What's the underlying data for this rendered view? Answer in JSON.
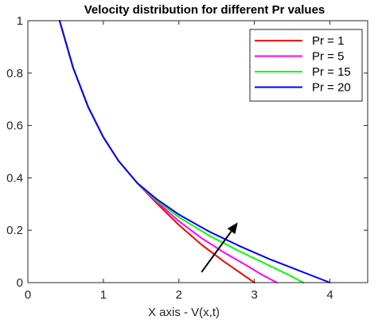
{
  "chart_data": {
    "type": "line",
    "title": "Velocity distribution for different Pr values",
    "xlabel": "X axis - V(x,t)",
    "ylabel": "",
    "xlim": [
      0,
      4.5
    ],
    "ylim": [
      0,
      1
    ],
    "xticks": [
      "0",
      "1",
      "2",
      "3",
      "4"
    ],
    "yticks": [
      "0",
      "0.2",
      "0.4",
      "0.6",
      "0.8",
      "1"
    ],
    "grid": false,
    "legend_position": "top-right",
    "series": [
      {
        "name": "Pr = 1",
        "color": "#ff0000",
        "x": [
          0.42,
          0.6,
          0.8,
          1.0,
          1.2,
          1.45,
          1.7,
          2.0,
          2.3,
          2.6,
          2.85,
          3.0
        ],
        "y": [
          1.0,
          0.82,
          0.67,
          0.555,
          0.465,
          0.38,
          0.305,
          0.22,
          0.145,
          0.08,
          0.03,
          0.0
        ]
      },
      {
        "name": "Pr = 5",
        "color": "#ff00ff",
        "x": [
          0.42,
          0.6,
          0.8,
          1.0,
          1.2,
          1.45,
          1.7,
          2.0,
          2.3,
          2.6,
          2.9,
          3.1,
          3.3
        ],
        "y": [
          1.0,
          0.82,
          0.67,
          0.555,
          0.465,
          0.38,
          0.31,
          0.235,
          0.17,
          0.115,
          0.065,
          0.03,
          0.0
        ]
      },
      {
        "name": "Pr = 15",
        "color": "#00ff00",
        "x": [
          0.42,
          0.6,
          0.8,
          1.0,
          1.2,
          1.45,
          1.7,
          2.0,
          2.4,
          2.8,
          3.2,
          3.45,
          3.65
        ],
        "y": [
          1.0,
          0.82,
          0.67,
          0.555,
          0.465,
          0.38,
          0.315,
          0.25,
          0.18,
          0.12,
          0.065,
          0.03,
          0.0
        ]
      },
      {
        "name": "Pr = 20",
        "color": "#0000ff",
        "x": [
          0.42,
          0.6,
          0.8,
          1.0,
          1.2,
          1.45,
          1.7,
          2.0,
          2.4,
          2.8,
          3.2,
          3.6,
          4.0
        ],
        "y": [
          1.0,
          0.82,
          0.67,
          0.555,
          0.465,
          0.38,
          0.32,
          0.26,
          0.195,
          0.14,
          0.09,
          0.045,
          0.0
        ]
      }
    ],
    "annotations": [
      {
        "type": "arrow",
        "from": [
          2.3,
          0.04
        ],
        "to": [
          2.78,
          0.23
        ],
        "color": "#000000"
      }
    ]
  }
}
